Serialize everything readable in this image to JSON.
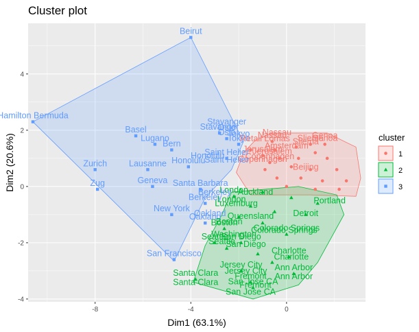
{
  "chart_data": {
    "type": "scatter",
    "title": "Cluster plot",
    "xlabel": "Dim1 (63.1%)",
    "ylabel": "Dim2 (20.6%)",
    "xlim": [
      -10.8,
      3.3
    ],
    "ylim": [
      -4.1,
      5.8
    ],
    "xticks": [
      -8,
      -4,
      0
    ],
    "yticks": [
      -4,
      -2,
      0,
      2,
      4
    ],
    "grid": true,
    "legend": {
      "title": "cluster",
      "position": "right"
    },
    "colors": {
      "1": "#F8766D",
      "2": "#00BA38",
      "3": "#619CFF"
    },
    "series": [
      {
        "name": "1",
        "marker": "circle",
        "points": [
          {
            "label": "Nassau",
            "x": -0.6,
            "y": 1.6
          },
          {
            "label": "Genoa",
            "x": 1.6,
            "y": 1.5
          },
          {
            "label": "Sliema",
            "x": 1.0,
            "y": 1.5
          },
          {
            "label": "Jerusalem",
            "x": -1.0,
            "y": 1.1
          },
          {
            "label": "Copenhagen",
            "x": -0.7,
            "y": 0.85
          },
          {
            "label": "",
            "x": -1.5,
            "y": 1.3
          },
          {
            "label": "",
            "x": -0.5,
            "y": 1.3
          },
          {
            "label": "",
            "x": 0.4,
            "y": 1.4
          },
          {
            "label": "",
            "x": 1.2,
            "y": 1.2
          },
          {
            "label": "",
            "x": -0.3,
            "y": 1.0
          },
          {
            "label": "",
            "x": 0.5,
            "y": 1.0
          },
          {
            "label": "",
            "x": 1.7,
            "y": 1.0
          },
          {
            "label": "",
            "x": -0.9,
            "y": 0.6
          },
          {
            "label": "",
            "x": 0.2,
            "y": 0.7
          },
          {
            "label": "",
            "x": 1.0,
            "y": 0.6
          },
          {
            "label": "",
            "x": 2.1,
            "y": 0.6
          },
          {
            "label": "",
            "x": -0.4,
            "y": 0.3
          },
          {
            "label": "",
            "x": 0.6,
            "y": 0.3
          },
          {
            "label": "",
            "x": 1.5,
            "y": 0.2
          },
          {
            "label": "",
            "x": 2.5,
            "y": 0.2
          },
          {
            "label": "",
            "x": 0.0,
            "y": 0.0
          },
          {
            "label": "",
            "x": 1.2,
            "y": -0.1
          },
          {
            "label": "",
            "x": 2.2,
            "y": -0.1
          }
        ],
        "hull": [
          [
            -1.3,
            1.65
          ],
          [
            -0.6,
            1.9
          ],
          [
            1.7,
            1.9
          ],
          [
            2.9,
            1.4
          ],
          [
            3.1,
            0.3
          ],
          [
            2.9,
            -0.35
          ],
          [
            1.0,
            -0.3
          ],
          [
            -1.5,
            -0.3
          ],
          [
            -2.1,
            0.5
          ],
          [
            -1.8,
            1.2
          ]
        ]
      },
      {
        "name": "2",
        "marker": "triangle",
        "points": [
          {
            "label": "London",
            "x": -2.2,
            "y": -0.35
          },
          {
            "label": "Boston",
            "x": -2.6,
            "y": -1.5
          },
          {
            "label": "Seattle",
            "x": -3.0,
            "y": -2.0
          },
          {
            "label": "San Diego",
            "x": -1.9,
            "y": -2.0
          },
          {
            "label": "Colorado Springs",
            "x": 0.0,
            "y": -1.7
          },
          {
            "label": "Charlotte",
            "x": 0.1,
            "y": -2.5
          },
          {
            "label": "Jersey City",
            "x": -1.9,
            "y": -3.0
          },
          {
            "label": "Ann Arbor",
            "x": 0.3,
            "y": -3.1
          },
          {
            "label": "Santa Clara",
            "x": -3.8,
            "y": -3.3
          },
          {
            "label": "Fremont",
            "x": -1.5,
            "y": -3.4
          },
          {
            "label": "San Jose CA",
            "x": -1.4,
            "y": -3.6
          },
          {
            "label": "",
            "x": -1.0,
            "y": -0.2
          },
          {
            "label": "",
            "x": 0.2,
            "y": -0.4
          },
          {
            "label": "",
            "x": 1.3,
            "y": -0.6
          },
          {
            "label": "",
            "x": -1.5,
            "y": -0.7
          },
          {
            "label": "",
            "x": -0.5,
            "y": -0.9
          },
          {
            "label": "",
            "x": 0.8,
            "y": -1.0
          },
          {
            "label": "",
            "x": -2.0,
            "y": -1.1
          },
          {
            "label": "",
            "x": -1.0,
            "y": -1.3
          },
          {
            "label": "",
            "x": -2.5,
            "y": -2.2
          },
          {
            "label": "",
            "x": -1.2,
            "y": -2.4
          },
          {
            "label": "",
            "x": -0.6,
            "y": -2.7
          }
        ],
        "hull": [
          [
            -2.3,
            -0.2
          ],
          [
            0.5,
            0.0
          ],
          [
            2.1,
            -0.3
          ],
          [
            2.4,
            -1.0
          ],
          [
            1.3,
            -2.7
          ],
          [
            0.5,
            -3.5
          ],
          [
            -1.4,
            -4.0
          ],
          [
            -3.9,
            -3.4
          ],
          [
            -3.4,
            -2.1
          ],
          [
            -2.7,
            -1.0
          ]
        ]
      },
      {
        "name": "3",
        "marker": "square",
        "points": [
          {
            "label": "Beirut",
            "x": -4.0,
            "y": 5.3
          },
          {
            "label": "Hamilton Bermuda",
            "x": -10.6,
            "y": 2.3
          },
          {
            "label": "Basel",
            "x": -6.3,
            "y": 1.8
          },
          {
            "label": "Lugano",
            "x": -5.5,
            "y": 1.5
          },
          {
            "label": "Bern",
            "x": -4.8,
            "y": 1.3
          },
          {
            "label": "Stavanger",
            "x": -2.8,
            "y": 1.9
          },
          {
            "label": "Oslo",
            "x": -2.5,
            "y": 1.7
          },
          {
            "label": "Tokyo",
            "x": -2.0,
            "y": 1.5
          },
          {
            "label": "Saint Helier",
            "x": -2.5,
            "y": 1.0
          },
          {
            "label": "Honolulu",
            "x": -4.1,
            "y": 0.7
          },
          {
            "label": "Zurich",
            "x": -8.0,
            "y": 0.6
          },
          {
            "label": "Lausanne",
            "x": -5.8,
            "y": 0.6
          },
          {
            "label": "Zug",
            "x": -7.9,
            "y": -0.1
          },
          {
            "label": "Geneva",
            "x": -5.6,
            "y": 0.0
          },
          {
            "label": "Santa Barbara",
            "x": -3.6,
            "y": -0.1
          },
          {
            "label": "Berkeley",
            "x": -3.4,
            "y": -0.6
          },
          {
            "label": "New York",
            "x": -4.8,
            "y": -1.0
          },
          {
            "label": "Oakland",
            "x": -3.4,
            "y": -1.3
          },
          {
            "label": "San Francisco",
            "x": -4.7,
            "y": -2.6
          }
        ],
        "hull": [
          [
            -4.0,
            5.3
          ],
          [
            -1.8,
            1.6
          ],
          [
            -2.3,
            0.6
          ],
          [
            -3.4,
            -0.4
          ],
          [
            -4.7,
            -2.65
          ],
          [
            -10.6,
            2.3
          ]
        ]
      }
    ],
    "overlap_labels": [
      {
        "text": "Tokyo",
        "x": -2.0,
        "y": 1.78,
        "color": "#619CFF"
      },
      {
        "text": "Oslo",
        "x": -2.5,
        "y": 2.0,
        "color": "#619CFF"
      },
      {
        "text": "Stavanger",
        "x": -2.5,
        "y": 2.2,
        "color": "#619CFF"
      },
      {
        "text": "Honolulu",
        "x": -3.3,
        "y": 1.0,
        "color": "#619CFF"
      },
      {
        "text": "Berkeley",
        "x": -3.0,
        "y": -0.3,
        "color": "#619CFF"
      },
      {
        "text": "Oakland",
        "x": -3.2,
        "y": -1.05,
        "color": "#619CFF"
      }
    ],
    "cluster_labels_visible": [
      {
        "text": "Nassau",
        "x": -0.4,
        "y": 1.82,
        "color": "#F8766D"
      },
      {
        "text": "Genoa",
        "x": 1.6,
        "y": 1.72,
        "color": "#F8766D"
      },
      {
        "text": "Sliema",
        "x": 0.8,
        "y": 1.5,
        "color": "#F8766D"
      },
      {
        "text": "Jerusalem",
        "x": -0.6,
        "y": 1.15,
        "color": "#F8766D"
      },
      {
        "text": "Copenhagen",
        "x": -1.0,
        "y": 0.88,
        "color": "#F8766D"
      },
      {
        "text": "Retail Lomas",
        "x": -0.9,
        "y": 1.6,
        "color": "#F8766D"
      },
      {
        "text": "Amsterdam",
        "x": 0.0,
        "y": 1.35,
        "color": "#F8766D"
      },
      {
        "text": "Beijing",
        "x": 0.8,
        "y": 0.6,
        "color": "#F8766D"
      },
      {
        "text": "Saint Helier",
        "x": -2.5,
        "y": 0.85,
        "color": "#619CFF"
      },
      {
        "text": "London",
        "x": -2.3,
        "y": -0.55,
        "color": "#00BA38"
      },
      {
        "text": "Queensland",
        "x": -1.5,
        "y": -1.15,
        "color": "#00BA38"
      },
      {
        "text": "Luxemburg",
        "x": -2.1,
        "y": -0.7,
        "color": "#00BA38"
      },
      {
        "text": "Boston",
        "x": -2.4,
        "y": -1.35,
        "color": "#00BA38"
      },
      {
        "text": "Washington",
        "x": -2.2,
        "y": -1.8,
        "color": "#00BA38"
      },
      {
        "text": "Seattle",
        "x": -2.7,
        "y": -2.05,
        "color": "#00BA38"
      },
      {
        "text": "San Diego",
        "x": -1.7,
        "y": -2.15,
        "color": "#00BA38"
      },
      {
        "text": "Colorado Springs",
        "x": -0.1,
        "y": -1.65,
        "color": "#00BA38"
      },
      {
        "text": "Charlotte",
        "x": 0.2,
        "y": -2.6,
        "color": "#00BA38"
      },
      {
        "text": "Jersey City",
        "x": -1.7,
        "y": -3.1,
        "color": "#00BA38"
      },
      {
        "text": "Ann Arbor",
        "x": 0.3,
        "y": -3.3,
        "color": "#00BA38"
      },
      {
        "text": "Santa Clara",
        "x": -3.8,
        "y": -3.5,
        "color": "#00BA38"
      },
      {
        "text": "Fremont",
        "x": -1.3,
        "y": -3.6,
        "color": "#00BA38"
      },
      {
        "text": "San Jose CA",
        "x": -1.5,
        "y": -3.85,
        "color": "#00BA38"
      },
      {
        "text": "Auckland",
        "x": -1.3,
        "y": -0.3,
        "color": "#00BA38"
      },
      {
        "text": "Detroit",
        "x": 0.8,
        "y": -1.05,
        "color": "#00BA38"
      },
      {
        "text": "Portland",
        "x": 1.8,
        "y": -0.6,
        "color": "#00BA38"
      }
    ]
  }
}
